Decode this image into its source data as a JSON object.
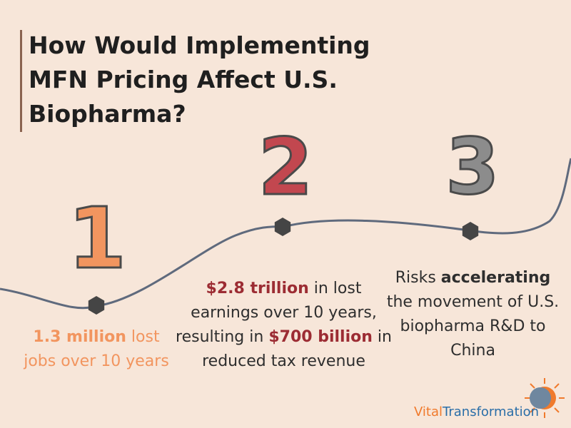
{
  "title": {
    "line1": "How Would Implementing",
    "line2": "MFN Pricing Affect U.S.",
    "line3": "Biopharma?"
  },
  "steps": [
    {
      "number": "1",
      "highlight": "1.3 million",
      "text_after": " lost jobs over 10 years",
      "color": "#f2955f"
    },
    {
      "number": "2",
      "highlight1": "$2.8 trillion",
      "text1": " in lost earnings over 10 years, resulting in ",
      "highlight2": "$700 billion",
      "text2": " in reduced tax revenue",
      "color": "#c2474f"
    },
    {
      "number": "3",
      "text_before": "Risks ",
      "highlight": "accelerating",
      "text_after": " the movement of U.S. biopharma R&D to China",
      "color": "#8c8c8c"
    }
  ],
  "logo": {
    "part1": "Vital",
    "part2": "Transformation"
  },
  "colors": {
    "background": "#f7e6d9",
    "curve": "#5f6a7d",
    "dot": "#454545"
  }
}
